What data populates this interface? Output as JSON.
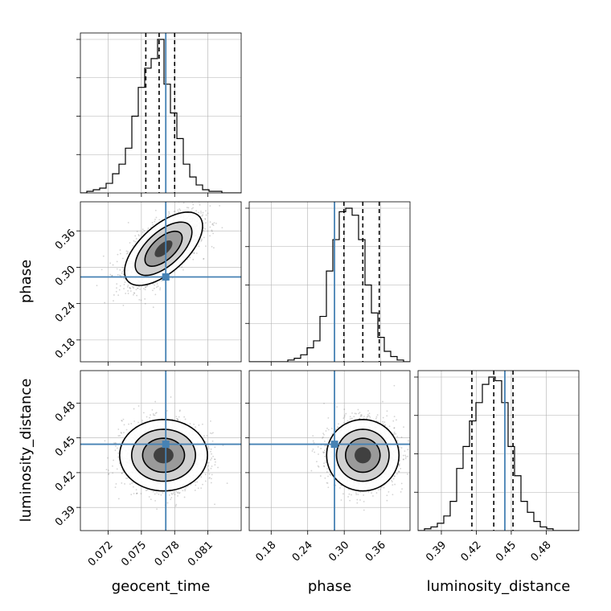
{
  "chart_data": {
    "type": "corner",
    "parameters": [
      "geocent_time",
      "phase",
      "luminosity_distance"
    ],
    "axis_labels": {
      "geocent_time": "geocent_time",
      "phase": "phase",
      "luminosity_distance": "luminosity_distance"
    },
    "ranges": {
      "geocent_time": [
        0.0695,
        0.084
      ],
      "phase": [
        0.144,
        0.408
      ],
      "luminosity_distance": [
        0.37,
        0.508
      ]
    },
    "ticks": {
      "geocent_time": {
        "values": [
          0.072,
          0.075,
          0.078,
          0.081
        ],
        "labels": [
          "0.072",
          "0.075",
          "0.078",
          "0.081"
        ]
      },
      "phase": {
        "values": [
          0.18,
          0.24,
          0.3,
          0.36
        ],
        "labels": [
          "0.18",
          "0.24",
          "0.30",
          "0.36"
        ]
      },
      "luminosity_distance": {
        "values": [
          0.39,
          0.42,
          0.45,
          0.48
        ],
        "labels": [
          "0.39",
          "0.42",
          "0.45",
          "0.48"
        ]
      }
    },
    "truths": {
      "geocent_time": 0.0772,
      "phase": 0.284,
      "luminosity_distance": 0.4445
    },
    "quantiles": {
      "geocent_time": [
        0.0754,
        0.0766,
        0.078
      ],
      "phase": [
        0.2995,
        0.3305,
        0.3575
      ],
      "luminosity_distance": [
        0.4162,
        0.435,
        0.4515
      ]
    },
    "marginals": {
      "geocent_time": {
        "bin_edges": [
          0.0695,
          0.084
        ],
        "counts": [
          0,
          1,
          2,
          3,
          6,
          12,
          18,
          28,
          48,
          66,
          78,
          84,
          96,
          68,
          50,
          34,
          18,
          10,
          5,
          2,
          1,
          1,
          0,
          0,
          0
        ]
      },
      "phase": {
        "bin_edges": [
          0.144,
          0.408
        ],
        "counts": [
          0,
          0,
          0,
          0,
          0,
          0,
          1,
          2,
          4,
          8,
          12,
          26,
          52,
          70,
          86,
          88,
          84,
          70,
          44,
          28,
          14,
          6,
          3,
          1,
          0
        ]
      },
      "luminosity_distance": {
        "bin_edges": [
          0.37,
          0.508
        ],
        "counts": [
          0,
          1,
          2,
          4,
          8,
          16,
          34,
          46,
          60,
          70,
          80,
          84,
          82,
          70,
          46,
          30,
          16,
          10,
          5,
          2,
          1,
          0,
          0,
          0,
          0
        ]
      }
    },
    "joint": [
      {
        "x": "geocent_time",
        "y": "phase",
        "mean": [
          0.077,
          0.3305
        ],
        "sd": [
          0.0016,
          0.0275
        ],
        "corr": 0.62
      },
      {
        "x": "geocent_time",
        "y": "luminosity_distance",
        "mean": [
          0.077,
          0.435
        ],
        "sd": [
          0.0018,
          0.014
        ],
        "corr": 0.0
      },
      {
        "x": "phase",
        "y": "luminosity_distance",
        "mean": [
          0.3305,
          0.435
        ],
        "sd": [
          0.027,
          0.014
        ],
        "corr": 0.0
      }
    ],
    "grid": true,
    "colors": {
      "truth": "#4682b4",
      "hist": "#000000",
      "quantile": "#000000",
      "scatter": "#808080",
      "grid": "#b0b0b0"
    }
  }
}
